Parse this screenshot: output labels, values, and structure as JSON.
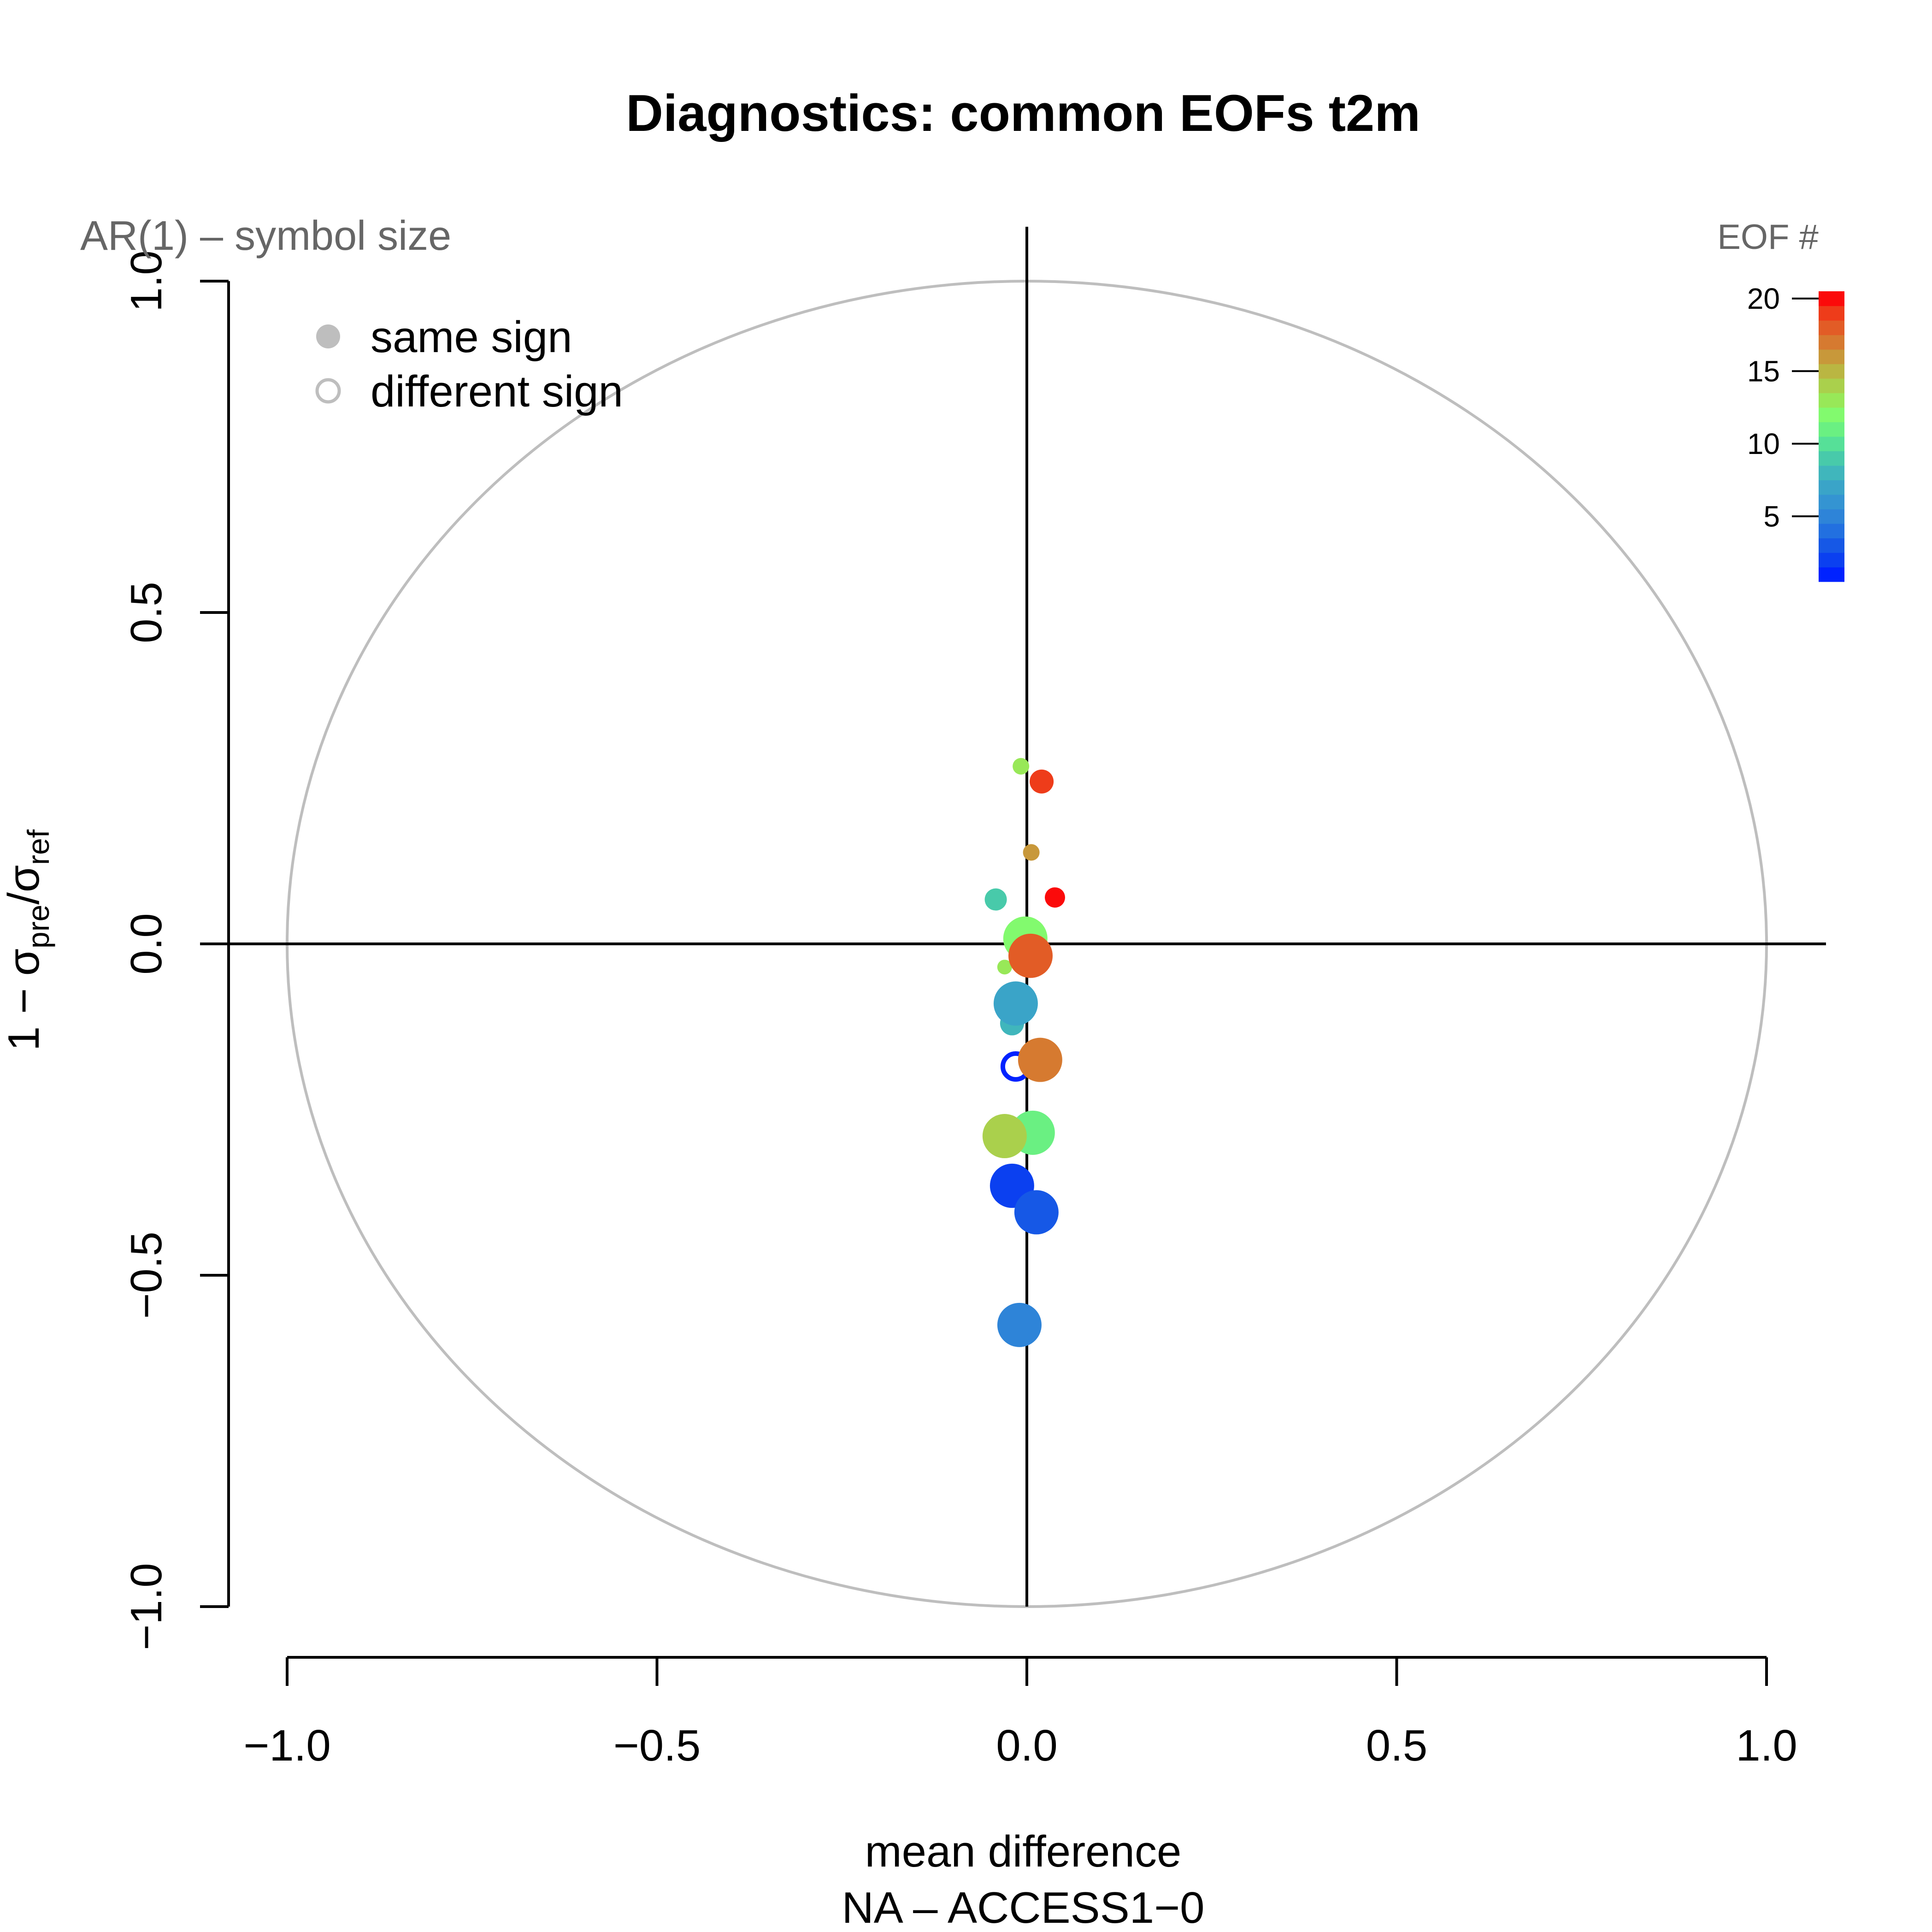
{
  "chart_data": {
    "type": "scatter",
    "title": "Diagnostics: common EOFs t2m",
    "xlabel": "mean difference",
    "xlabel_line2": "NA  –  ACCESS1−0",
    "ylabel": "1 − σpre/σref",
    "ylabel_parts": {
      "prefix": "1 − σ",
      "sub1": "pre",
      "slash": "/σ",
      "sub2": "ref"
    },
    "xlim": [
      -1.0,
      1.0
    ],
    "ylim": [
      -1.0,
      1.0
    ],
    "x_ticks": [
      -1.0,
      -0.5,
      0.0,
      0.5,
      1.0
    ],
    "x_tick_labels": [
      "−1.0",
      "−0.5",
      "0.0",
      "0.5",
      "1.0"
    ],
    "y_ticks": [
      -1.0,
      -0.5,
      0.0,
      0.5,
      1.0
    ],
    "y_tick_labels": [
      "−1.0",
      "−0.5",
      "0.0",
      "0.5",
      "1.0"
    ],
    "reference_circle_radius": 1.0,
    "size_note": "AR(1) – symbol size",
    "legend": {
      "position": "top-left",
      "items": [
        {
          "label": "same sign",
          "marker": "filled-circle"
        },
        {
          "label": "different sign",
          "marker": "open-circle"
        }
      ]
    },
    "colorbar": {
      "title": "EOF #",
      "position": "top-right",
      "range": [
        1,
        20
      ],
      "tick_values": [
        5,
        10,
        15,
        20
      ],
      "tick_labels": [
        "5",
        "10",
        "15",
        "20"
      ],
      "colors": [
        "#0022ff",
        "#0b40f0",
        "#1658e6",
        "#2270e0",
        "#2e84d8",
        "#3494d2",
        "#3aa4c8",
        "#40b6bc",
        "#48caaa",
        "#56e098",
        "#6af082",
        "#82fa6e",
        "#98e858",
        "#aad04c",
        "#bab642",
        "#c8983a",
        "#d67a30",
        "#e25c26",
        "#ee3c1a",
        "#fb0a0a"
      ]
    },
    "series": [
      {
        "points": [
          {
            "eof": 1,
            "x": -0.015,
            "y": -0.185,
            "ar1": 0.45,
            "same_sign": false
          },
          {
            "eof": 2,
            "x": -0.02,
            "y": -0.365,
            "ar1": 0.95,
            "same_sign": true
          },
          {
            "eof": 3,
            "x": 0.013,
            "y": -0.405,
            "ar1": 0.95,
            "same_sign": true
          },
          {
            "eof": 5,
            "x": -0.01,
            "y": -0.575,
            "ar1": 0.95,
            "same_sign": true
          },
          {
            "eof": 7,
            "x": -0.015,
            "y": -0.09,
            "ar1": 0.95,
            "same_sign": true
          },
          {
            "eof": 8,
            "x": -0.02,
            "y": -0.12,
            "ar1": 0.4,
            "same_sign": true
          },
          {
            "eof": 9,
            "x": -0.042,
            "y": 0.067,
            "ar1": 0.35,
            "same_sign": true
          },
          {
            "eof": 11,
            "x": 0.008,
            "y": -0.285,
            "ar1": 0.95,
            "same_sign": true
          },
          {
            "eof": 12,
            "x": -0.002,
            "y": 0.008,
            "ar1": 0.95,
            "same_sign": true
          },
          {
            "eof": 13,
            "x": -0.008,
            "y": 0.268,
            "ar1": 0.2,
            "same_sign": true
          },
          {
            "eof": 13,
            "x": -0.03,
            "y": -0.035,
            "ar1": 0.15,
            "same_sign": true
          },
          {
            "eof": 14,
            "x": -0.03,
            "y": -0.29,
            "ar1": 0.95,
            "same_sign": true
          },
          {
            "eof": 16,
            "x": 0.006,
            "y": 0.138,
            "ar1": 0.2,
            "same_sign": true
          },
          {
            "eof": 17,
            "x": 0.018,
            "y": -0.175,
            "ar1": 0.95,
            "same_sign": true
          },
          {
            "eof": 18,
            "x": 0.005,
            "y": -0.018,
            "ar1": 0.95,
            "same_sign": true
          },
          {
            "eof": 19,
            "x": 0.02,
            "y": 0.245,
            "ar1": 0.4,
            "same_sign": true
          },
          {
            "eof": 20,
            "x": 0.038,
            "y": 0.07,
            "ar1": 0.3,
            "same_sign": true
          }
        ]
      }
    ]
  }
}
